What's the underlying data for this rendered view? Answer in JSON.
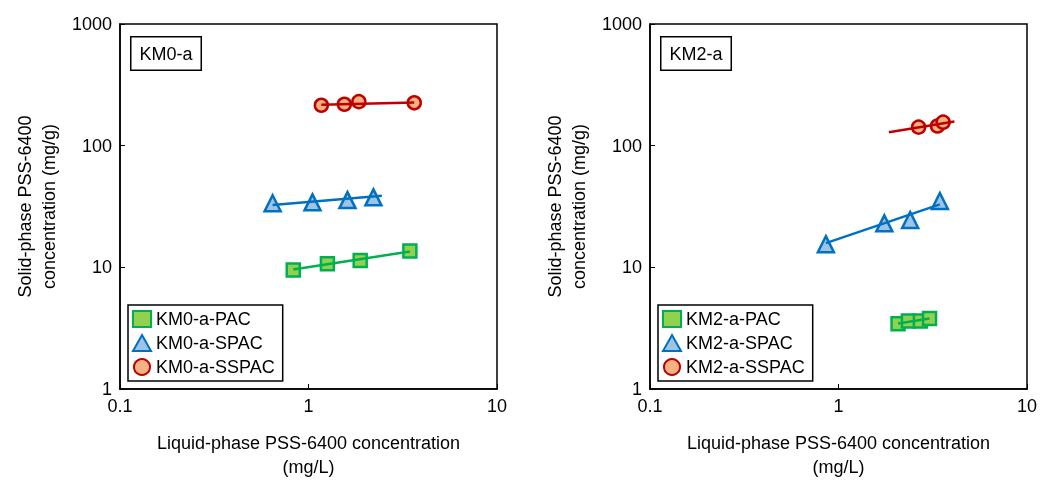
{
  "chart_data": [
    {
      "type": "scatter",
      "xlabel": "Liquid-phase PSS-6400 concentration\n(mg/L)",
      "ylabel": "Solid-phase PSS-6400\nconcentration (mg/g)",
      "annotations": [
        "KM0-a"
      ],
      "log": "xy",
      "xlim": [
        0.1,
        10
      ],
      "xticks": [
        0.1,
        1,
        10
      ],
      "ylim": [
        1,
        1000
      ],
      "yticks": [
        1,
        10,
        100,
        1000
      ],
      "grid": false,
      "legend": "bottom left",
      "series": [
        {
          "name": "KM0-a-PAC",
          "marker": "square",
          "color": "#92d050",
          "x": [
            0.83,
            1.26,
            1.88,
            3.45
          ],
          "values": [
            9.5,
            10.7,
            11.4,
            13.6
          ]
        },
        {
          "name": "KM0-a-SPAC",
          "marker": "triangle",
          "color": "#9dc3e6",
          "x": [
            0.645,
            1.05,
            1.61,
            2.21
          ],
          "values": [
            33.6,
            34.2,
            35.7,
            37.6
          ]
        },
        {
          "name": "KM0-a-SSPAC",
          "marker": "circle",
          "color": "#f4b183",
          "x": [
            1.17,
            1.55,
            1.85,
            3.64
          ],
          "values": [
            215,
            219,
            230,
            225
          ]
        },
        {
          "type": "line",
          "marker": "none",
          "color": "#00b050",
          "x": [
            0.83,
            3.45
          ],
          "values": [
            9.6,
            13.5
          ]
        },
        {
          "type": "line",
          "marker": "none",
          "color": "#0070c0",
          "x": [
            0.645,
            2.45
          ],
          "values": [
            32.6,
            38.8
          ]
        },
        {
          "type": "line",
          "marker": "none",
          "color": "#c00000",
          "x": [
            1.17,
            3.64
          ],
          "values": [
            217,
            226
          ]
        }
      ]
    },
    {
      "type": "scatter",
      "xlabel": "Liquid-phase PSS-6400 concentration\n(mg/L)",
      "ylabel": "Solid-phase PSS-6400\nconcentration (mg/g)",
      "annotations": [
        "KM2-a"
      ],
      "log": "xy",
      "xlim": [
        0.1,
        10
      ],
      "xticks": [
        0.1,
        1,
        10
      ],
      "ylim": [
        1,
        1000
      ],
      "yticks": [
        1,
        10,
        100,
        1000
      ],
      "grid": false,
      "legend": "bottom left",
      "series": [
        {
          "name": "KM2-a-PAC",
          "marker": "square",
          "color": "#92d050",
          "x": [
            2.07,
            2.35,
            2.72,
            3.04
          ],
          "values": [
            3.44,
            3.62,
            3.62,
            3.8
          ]
        },
        {
          "name": "KM2-a-SPAC",
          "marker": "triangle",
          "color": "#9dc3e6",
          "x": [
            0.857,
            1.75,
            2.4,
            3.45
          ],
          "values": [
            15.5,
            23,
            24.5,
            35.1
          ]
        },
        {
          "name": "KM2-a-SSPAC",
          "marker": "circle",
          "color": "#f4b183",
          "x": [
            2.66,
            3.35,
            3.59
          ],
          "values": [
            142,
            145,
            156
          ]
        },
        {
          "type": "line",
          "marker": "none",
          "color": "#00b050",
          "x": [
            2.07,
            3.04
          ],
          "values": [
            3.45,
            3.8
          ]
        },
        {
          "type": "line",
          "marker": "none",
          "color": "#0070c0",
          "x": [
            0.857,
            3.45
          ],
          "values": [
            15.8,
            32.9
          ]
        },
        {
          "type": "line",
          "marker": "none",
          "color": "#c00000",
          "x": [
            1.85,
            4.12
          ],
          "values": [
            129,
            158
          ]
        }
      ]
    }
  ]
}
